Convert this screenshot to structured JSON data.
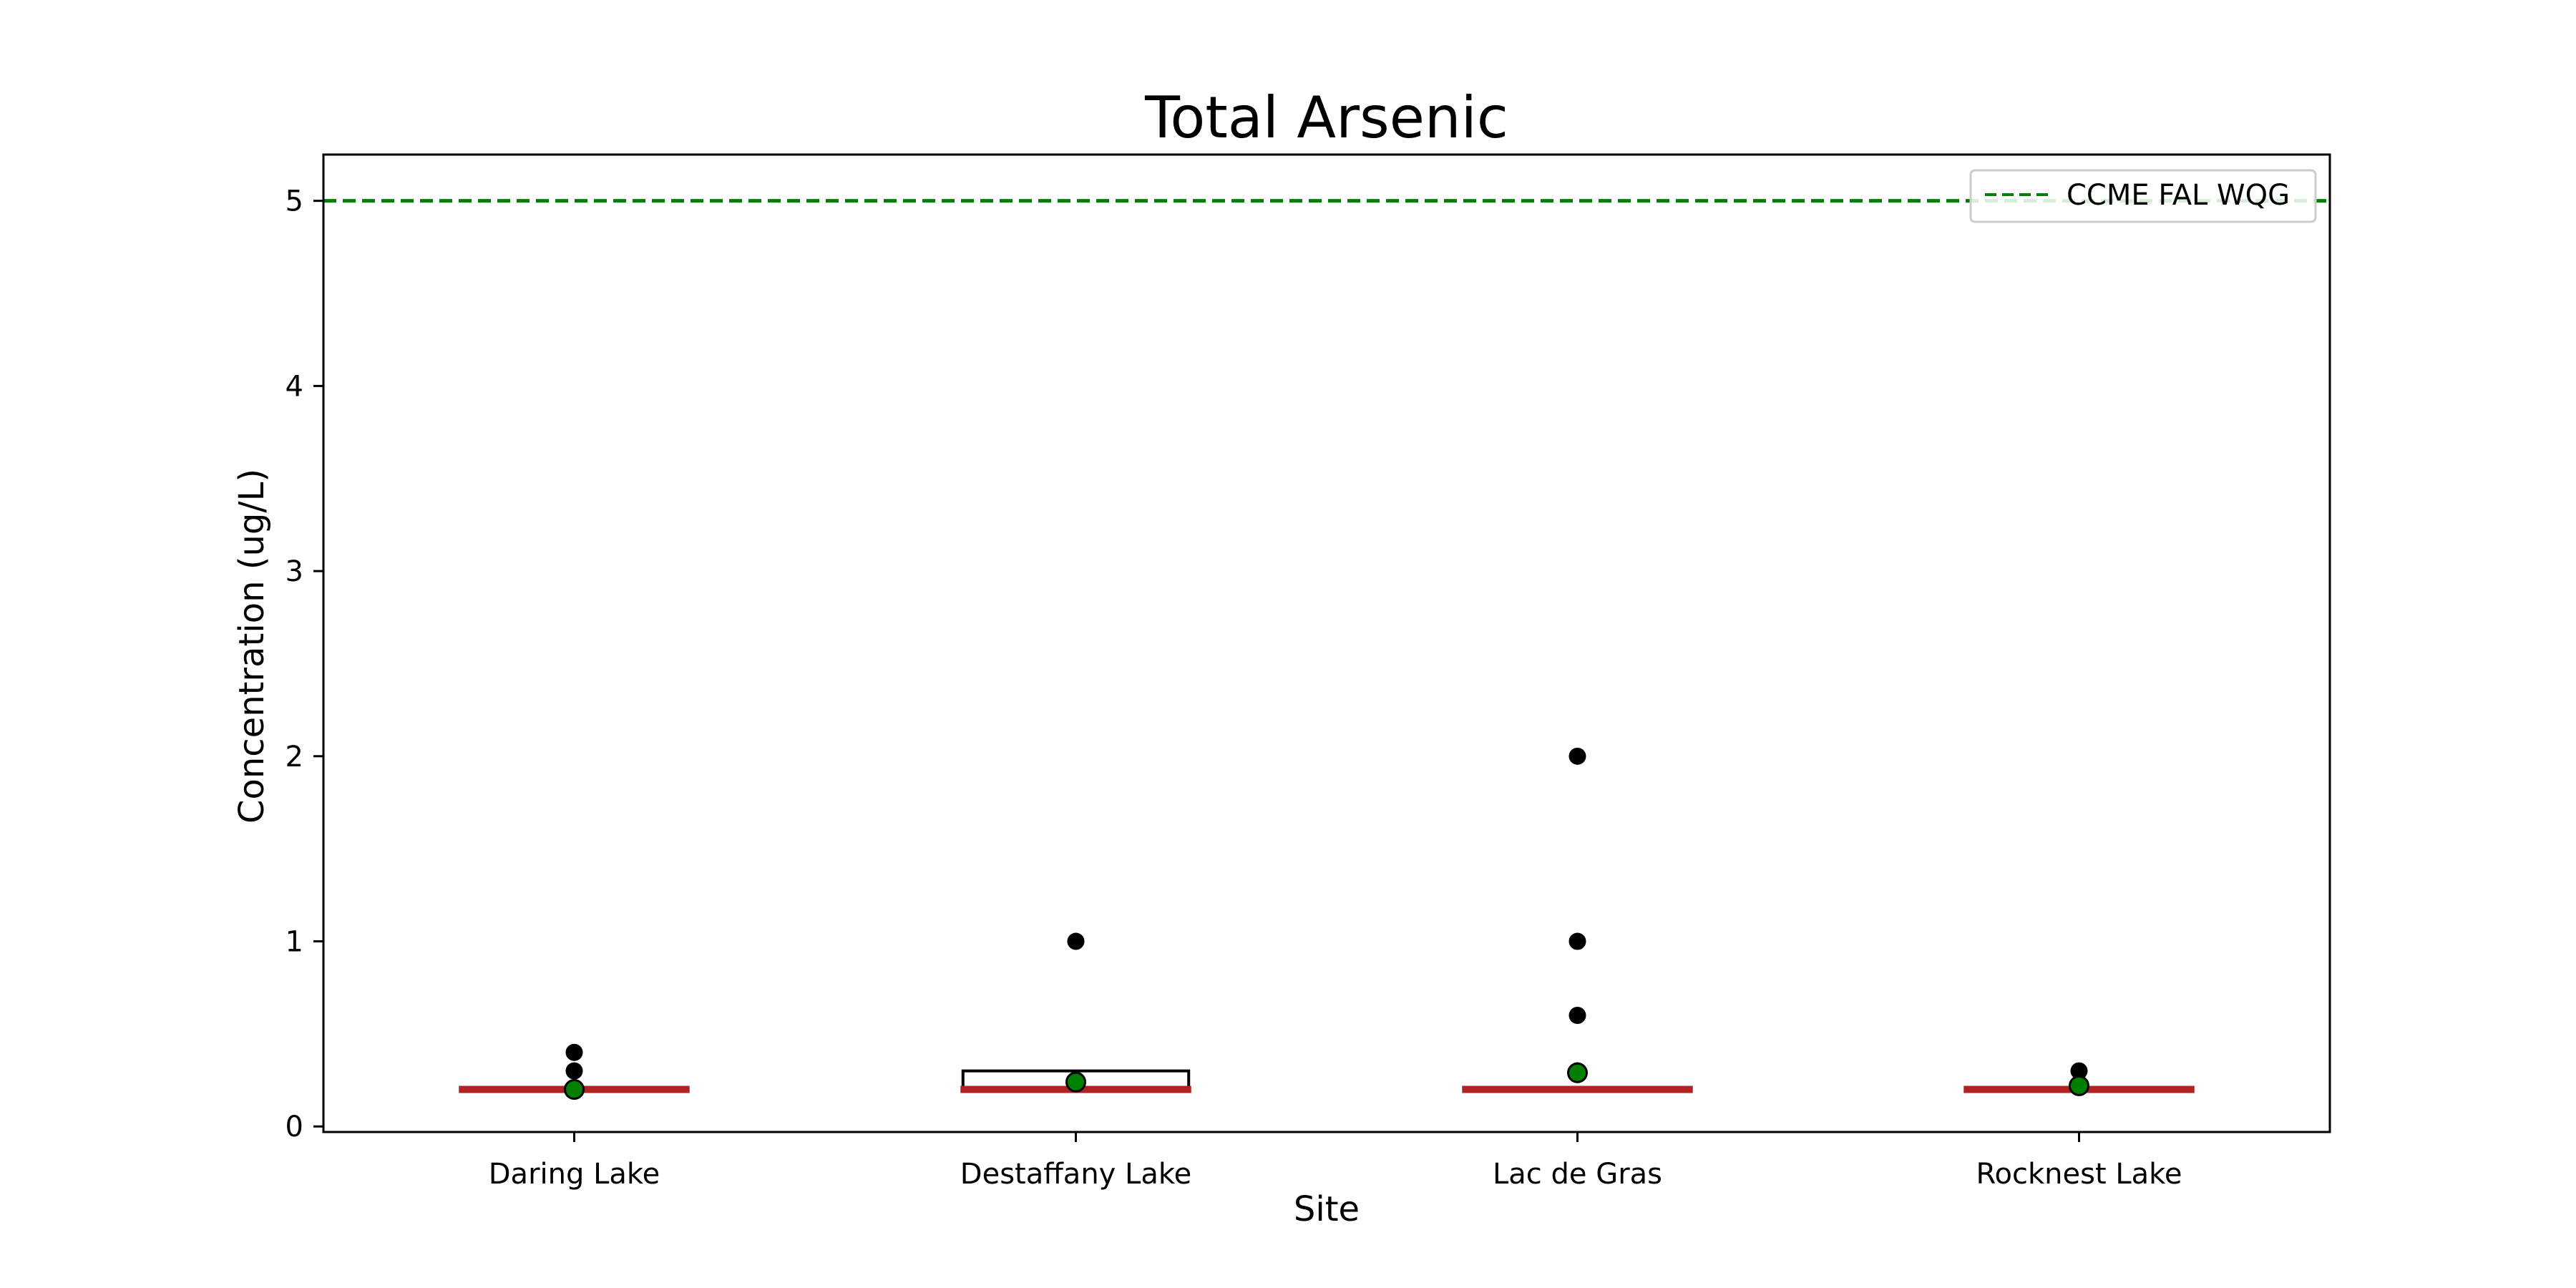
{
  "chart_data": {
    "type": "box",
    "title": "Total Arsenic",
    "xlabel": "Site",
    "ylabel": "Concentration (ug/L)",
    "ylim": [
      -0.03,
      5.25
    ],
    "yticks": [
      0,
      1,
      2,
      3,
      4,
      5
    ],
    "grid": false,
    "legend_position": "top-right",
    "categories": [
      "Daring Lake",
      "Destaffany Lake",
      "Lac de Gras",
      "Rocknest Lake"
    ],
    "boxes": [
      {
        "category": "Daring Lake",
        "q1": 0.2,
        "q3": 0.2,
        "median": 0.2,
        "mean": 0.2,
        "outliers": [
          0.3,
          0.4
        ]
      },
      {
        "category": "Destaffany Lake",
        "q1": 0.2,
        "q3": 0.3,
        "median": 0.2,
        "mean": 0.24,
        "outliers": [
          1.0
        ]
      },
      {
        "category": "Lac de Gras",
        "q1": 0.2,
        "q3": 0.2,
        "median": 0.2,
        "mean": 0.29,
        "outliers": [
          0.3,
          0.6,
          1.0,
          2.0
        ]
      },
      {
        "category": "Rocknest Lake",
        "q1": 0.2,
        "q3": 0.2,
        "median": 0.2,
        "mean": 0.22,
        "outliers": [
          0.3
        ]
      }
    ],
    "reference_line": {
      "name": "CCME FAL WQG",
      "value": 5,
      "style": "dashed",
      "color": "#008000"
    },
    "colors": {
      "median": "#b22222",
      "mean": "#008000",
      "outlier": "#000000",
      "box": "#000000"
    }
  }
}
